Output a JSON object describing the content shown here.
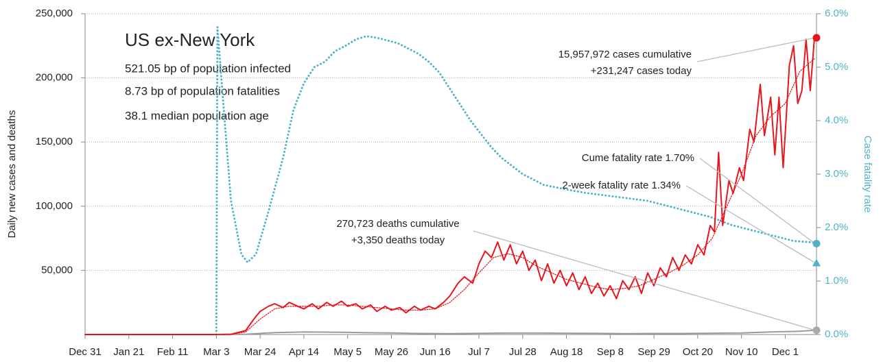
{
  "chart_data": {
    "type": "line",
    "title": "US ex-New York",
    "subtitle_lines": [
      "521.05 bp of population infected",
      "8.73 bp of population fatalities",
      "38.1 median population age"
    ],
    "y_label": "Daily new cases and deaths",
    "y2_label": "Case fatality rate",
    "xlim": [
      0,
      351
    ],
    "xticks": [
      {
        "value": 0,
        "label": "Dec 31"
      },
      {
        "value": 21,
        "label": "Jan 21"
      },
      {
        "value": 42,
        "label": "Feb 11"
      },
      {
        "value": 63,
        "label": "Mar 3"
      },
      {
        "value": 84,
        "label": "Mar 24"
      },
      {
        "value": 105,
        "label": "Apr 14"
      },
      {
        "value": 126,
        "label": "May 5"
      },
      {
        "value": 147,
        "label": "May 26"
      },
      {
        "value": 168,
        "label": "Jun 16"
      },
      {
        "value": 189,
        "label": "Jul 7"
      },
      {
        "value": 210,
        "label": "Jul 28"
      },
      {
        "value": 231,
        "label": "Aug 18"
      },
      {
        "value": 252,
        "label": "Sep 8"
      },
      {
        "value": 273,
        "label": "Sep 29"
      },
      {
        "value": 294,
        "label": "Oct 20"
      },
      {
        "value": 315,
        "label": "Nov 10"
      },
      {
        "value": 336,
        "label": "Dec 1"
      }
    ],
    "ylim": [
      0,
      250000
    ],
    "yticks": [
      {
        "value": 50000,
        "label": "50,000"
      },
      {
        "value": 100000,
        "label": "100,000"
      },
      {
        "value": 150000,
        "label": "150,000"
      },
      {
        "value": 200000,
        "label": "200,000"
      },
      {
        "value": 250000,
        "label": "250,000"
      }
    ],
    "y2lim": [
      0,
      6
    ],
    "y2ticks": [
      {
        "value": 0,
        "label": "0.0%"
      },
      {
        "value": 1,
        "label": "1.0%"
      },
      {
        "value": 2,
        "label": "2.0%"
      },
      {
        "value": 3,
        "label": "3.0%"
      },
      {
        "value": 4,
        "label": "4.0%"
      },
      {
        "value": 5,
        "label": "5.0%"
      },
      {
        "value": 6,
        "label": "6.0%"
      }
    ],
    "grid": true,
    "series": [
      {
        "color": "#999999",
        "style": "solid",
        "axis": "y",
        "x": [
          0,
          63,
          77,
          91,
          105,
          119,
          133,
          147,
          161,
          175,
          189,
          203,
          217,
          231,
          245,
          259,
          273,
          287,
          301,
          315,
          329,
          343,
          350
        ],
        "values": [
          0,
          0,
          200,
          1500,
          2000,
          1800,
          1500,
          1200,
          800,
          700,
          900,
          1100,
          1100,
          1000,
          900,
          700,
          800,
          800,
          1000,
          1200,
          2000,
          2500,
          3350
        ]
      },
      {
        "color": "#4fb3c8",
        "style": "dotted",
        "axis": "y2",
        "x": [
          63,
          63.5,
          66,
          70,
          75,
          78,
          82,
          88,
          95,
          100,
          105,
          110,
          115,
          120,
          125,
          130,
          135,
          140,
          145,
          150,
          155,
          160,
          165,
          170,
          175,
          180,
          185,
          190,
          195,
          200,
          205,
          210,
          215,
          220,
          230,
          240,
          250,
          260,
          270,
          280,
          290,
          300,
          310,
          320,
          330,
          340,
          350
        ],
        "values": [
          0,
          5.75,
          4.5,
          2.5,
          1.5,
          1.35,
          1.5,
          2.3,
          3.3,
          4.2,
          4.7,
          5.0,
          5.1,
          5.3,
          5.4,
          5.52,
          5.58,
          5.55,
          5.5,
          5.45,
          5.35,
          5.25,
          5.1,
          4.9,
          4.6,
          4.3,
          4.0,
          3.75,
          3.5,
          3.3,
          3.15,
          3.0,
          2.9,
          2.8,
          2.72,
          2.65,
          2.6,
          2.55,
          2.5,
          2.4,
          2.3,
          2.2,
          2.05,
          1.95,
          1.85,
          1.75,
          1.72
        ]
      },
      {
        "color": "#e8141b",
        "style": "dotted",
        "axis": "y",
        "x": [
          0,
          63,
          70,
          77,
          84,
          91,
          98,
          105,
          112,
          119,
          126,
          133,
          140,
          147,
          154,
          161,
          168,
          175,
          182,
          189,
          196,
          203,
          210,
          217,
          224,
          231,
          238,
          245,
          252,
          259,
          266,
          273,
          280,
          287,
          294,
          301,
          308,
          315,
          322,
          329,
          336,
          343,
          350
        ],
        "values": [
          0,
          0,
          100,
          2000,
          12000,
          20000,
          22000,
          22000,
          22000,
          23000,
          23000,
          22000,
          21000,
          20000,
          19000,
          19000,
          20000,
          25000,
          35000,
          48000,
          60000,
          63000,
          60000,
          53000,
          48000,
          43000,
          40000,
          37000,
          35000,
          36000,
          38000,
          43000,
          48000,
          54000,
          62000,
          75000,
          100000,
          125000,
          155000,
          170000,
          180000,
          205000,
          215000
        ]
      },
      {
        "color": "#e8141b",
        "style": "solid",
        "axis": "y",
        "x": [
          0,
          63,
          70,
          77,
          81,
          84,
          88,
          91,
          95,
          98,
          102,
          105,
          109,
          112,
          116,
          119,
          123,
          126,
          130,
          133,
          137,
          140,
          144,
          147,
          151,
          154,
          158,
          161,
          165,
          168,
          172,
          175,
          179,
          182,
          186,
          189,
          192,
          195,
          198,
          201,
          204,
          207,
          210,
          213,
          216,
          219,
          222,
          225,
          228,
          231,
          234,
          237,
          240,
          243,
          246,
          249,
          252,
          255,
          258,
          261,
          264,
          267,
          270,
          273,
          276,
          279,
          282,
          285,
          288,
          291,
          294,
          297,
          300,
          302,
          304,
          306,
          309,
          311,
          314,
          316,
          319,
          321,
          324,
          326,
          329,
          331,
          333,
          335,
          338,
          340,
          342,
          344,
          346,
          348,
          350
        ],
        "values": [
          0,
          0,
          200,
          3000,
          12000,
          18000,
          22000,
          24000,
          21000,
          25000,
          22000,
          20000,
          24000,
          20000,
          25000,
          22000,
          26000,
          22000,
          24000,
          20000,
          23000,
          18000,
          22000,
          19000,
          21000,
          17000,
          22000,
          19000,
          22000,
          20000,
          25000,
          30000,
          40000,
          45000,
          40000,
          55000,
          65000,
          60000,
          72000,
          58000,
          70000,
          55000,
          65000,
          50000,
          58000,
          42000,
          55000,
          40000,
          50000,
          38000,
          48000,
          35000,
          45000,
          32000,
          40000,
          30000,
          38000,
          28000,
          42000,
          35000,
          45000,
          32000,
          48000,
          38000,
          52000,
          45000,
          60000,
          50000,
          62000,
          55000,
          70000,
          62000,
          85000,
          80000,
          142000,
          85000,
          120000,
          110000,
          130000,
          120000,
          160000,
          150000,
          195000,
          155000,
          185000,
          140000,
          185000,
          130000,
          210000,
          225000,
          180000,
          190000,
          230000,
          190000,
          231247
        ]
      }
    ],
    "annotations": [
      {
        "lines": [
          "15,957,972 cases cumulative",
          "+231,247 cases today"
        ],
        "value": 231247,
        "axis": "y",
        "marker": "circle",
        "color": "#e8141b"
      },
      {
        "lines": [
          "270,723 deaths cumulative",
          "+3,350 deaths today"
        ],
        "value": 3350,
        "axis": "y",
        "marker": "circle",
        "color": "#aaaaaa"
      },
      {
        "lines": [
          "Cume fatality rate 1.70%"
        ],
        "value": 1.7,
        "axis": "y2",
        "marker": "circle",
        "color": "#4fb3c8"
      },
      {
        "lines": [
          "2-week fatality rate 1.34%"
        ],
        "value": 1.34,
        "axis": "y2",
        "marker": "triangle",
        "color": "#4fb3c8"
      }
    ]
  }
}
